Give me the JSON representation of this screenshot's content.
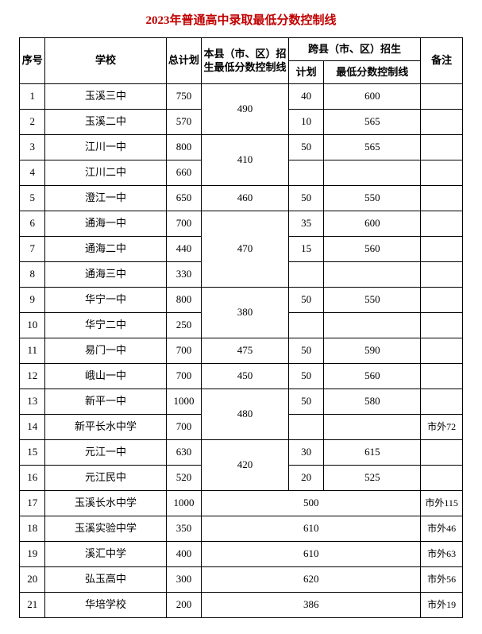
{
  "title": "2023年普通高中录取最低分数控制线",
  "title_color": "#c00000",
  "headers": {
    "num": "序号",
    "school": "学校",
    "total": "总计划",
    "local": "本县（市、区）招生最低分数控制线",
    "cross": "跨县（市、区）招生",
    "cross_plan": "计划",
    "cross_score": "最低分数控制线",
    "note": "备注"
  },
  "row1": {
    "n": "1",
    "school": "玉溪三中",
    "total": "750",
    "cplan": "40",
    "cscore": "600"
  },
  "loc12": "490",
  "row2": {
    "n": "2",
    "school": "玉溪二中",
    "total": "570",
    "cplan": "10",
    "cscore": "565"
  },
  "row3": {
    "n": "3",
    "school": "江川一中",
    "total": "800",
    "cplan": "50",
    "cscore": "565"
  },
  "loc34": "410",
  "row4": {
    "n": "4",
    "school": "江川二中",
    "total": "660",
    "cplan": "",
    "cscore": ""
  },
  "row5": {
    "n": "5",
    "school": "澄江一中",
    "total": "650",
    "loc": "460",
    "cplan": "50",
    "cscore": "550"
  },
  "row6": {
    "n": "6",
    "school": "通海一中",
    "total": "700",
    "cplan": "35",
    "cscore": "600"
  },
  "loc678": "470",
  "row7": {
    "n": "7",
    "school": "通海二中",
    "total": "440",
    "cplan": "15",
    "cscore": "560"
  },
  "row8": {
    "n": "8",
    "school": "通海三中",
    "total": "330",
    "cplan": "",
    "cscore": ""
  },
  "row9": {
    "n": "9",
    "school": "华宁一中",
    "total": "800",
    "cplan": "50",
    "cscore": "550"
  },
  "loc910": "380",
  "row10": {
    "n": "10",
    "school": "华宁二中",
    "total": "250",
    "cplan": "",
    "cscore": ""
  },
  "row11": {
    "n": "11",
    "school": "易门一中",
    "total": "700",
    "loc": "475",
    "cplan": "50",
    "cscore": "590"
  },
  "row12": {
    "n": "12",
    "school": "峨山一中",
    "total": "700",
    "loc": "450",
    "cplan": "50",
    "cscore": "560"
  },
  "row13": {
    "n": "13",
    "school": "新平一中",
    "total": "1000",
    "cplan": "50",
    "cscore": "580"
  },
  "loc1314": "480",
  "row14": {
    "n": "14",
    "school": "新平长水中学",
    "total": "700",
    "cplan": "",
    "cscore": "",
    "note": "市外72"
  },
  "row15": {
    "n": "15",
    "school": "元江一中",
    "total": "630",
    "cplan": "30",
    "cscore": "615"
  },
  "loc1516": "420",
  "row16": {
    "n": "16",
    "school": "元江民中",
    "total": "520",
    "cplan": "20",
    "cscore": "525"
  },
  "row17": {
    "n": "17",
    "school": "玉溪长水中学",
    "total": "1000",
    "merged": "500",
    "note": "市外115"
  },
  "row18": {
    "n": "18",
    "school": "玉溪实验中学",
    "total": "350",
    "merged": "610",
    "note": "市外46"
  },
  "row19": {
    "n": "19",
    "school": "溪汇中学",
    "total": "400",
    "merged": "610",
    "note": "市外63"
  },
  "row20": {
    "n": "20",
    "school": "弘玉高中",
    "total": "300",
    "merged": "620",
    "note": "市外56"
  },
  "row21": {
    "n": "21",
    "school": "华培学校",
    "total": "200",
    "merged": "386",
    "note": "市外19"
  }
}
